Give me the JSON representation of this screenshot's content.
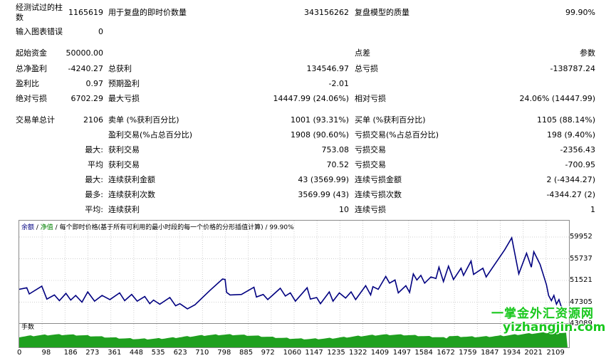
{
  "report": {
    "bars_tested_label": "经测试过的柱\n数",
    "bars_tested_value": "1165619",
    "ticks_label": "用于复盘的即时价数量",
    "ticks_value": "343156262",
    "quality_label": "复盘模型的质量",
    "quality_value": "99.90%",
    "errors_label": "输入图表错误",
    "errors_value": "0",
    "deposit_label": "起始资金",
    "deposit_value": "50000.00",
    "spread_label": "点差",
    "spread_value": "参数",
    "net_label": "总净盈利",
    "net_value": "-4240.27",
    "gross_profit_label": "总获利",
    "gross_profit_value": "134546.97",
    "gross_loss_label": "总亏损",
    "gross_loss_value": "-138787.24",
    "pf_label": "盈利比",
    "pf_value": "0.97",
    "payoff_label": "预期盈利",
    "payoff_value": "-2.01",
    "abs_dd_label": "绝对亏损",
    "abs_dd_value": "6702.29",
    "max_dd_label": "最大亏损",
    "max_dd_value": "14447.99 (24.06%)",
    "rel_dd_label": "相对亏损",
    "rel_dd_value": "24.06% (14447.99)",
    "trades_label": "交易单总计",
    "trades_value": "2106",
    "short_label": "卖单 (%获利百分比)",
    "short_value": "1001 (93.31%)",
    "long_label": "买单 (%获利百分比)",
    "long_value": "1105 (88.14%)",
    "win_label": "盈利交易(%占总百分比)",
    "win_value": "1908 (90.60%)",
    "loss_label": "亏损交易(%占总百分比)",
    "loss_value": "198 (9.40%)",
    "largest_prefix": "最大:",
    "largest_win_label": "获利交易",
    "largest_win_value": "753.08",
    "largest_loss_label": "亏损交易",
    "largest_loss_value": "-2356.43",
    "avg_prefix": "平均",
    "avg_win_label": "获利交易",
    "avg_win_value": "70.52",
    "avg_loss_label": "亏损交易",
    "avg_loss_value": "-700.95",
    "max_cons_prefix": "最大:",
    "max_cons_win_label": "连续获利金额",
    "max_cons_win_value": "43 (3569.99)",
    "max_cons_loss_label": "连续亏损金额",
    "max_cons_loss_value": "2 (-4344.27)",
    "most_prefix": "最多:",
    "most_cons_win_label": "连续获利次数",
    "most_cons_win_value": "3569.99 (43)",
    "most_cons_loss_label": "连续亏损次数",
    "most_cons_loss_value": "-4344.27 (2)",
    "avg_cons_prefix": "平均:",
    "avg_cons_win_label": "连续获利",
    "avg_cons_win_value": "10",
    "avg_cons_loss_label": "连续亏损",
    "avg_cons_loss_value": "1"
  },
  "chart_legend": {
    "balance": "余额",
    "sep1": " / ",
    "equity": "净值",
    "sep2": " / ",
    "model": "每个即时价格(基于所有可利用的最小时段的每一个价格的分形插值计算)",
    "sep3": " / ",
    "quality": "99.90%"
  },
  "volume_label": "手数",
  "watermark": {
    "line1": "一掌金外汇资源网",
    "line2": "yizhangjin.com"
  },
  "colors": {
    "balance": "#000080",
    "equity": "#008000",
    "volume": "#1fa01f"
  },
  "chart_data": {
    "type": "line",
    "series": [
      {
        "name": "余额",
        "values": [
          [
            0,
            49800
          ],
          [
            30,
            50100
          ],
          [
            40,
            48900
          ],
          [
            90,
            50400
          ],
          [
            110,
            47900
          ],
          [
            140,
            48700
          ],
          [
            160,
            47600
          ],
          [
            186,
            49000
          ],
          [
            205,
            47700
          ],
          [
            225,
            48600
          ],
          [
            250,
            47300
          ],
          [
            273,
            49300
          ],
          [
            300,
            47500
          ],
          [
            330,
            48600
          ],
          [
            361,
            47800
          ],
          [
            400,
            49100
          ],
          [
            420,
            47600
          ],
          [
            448,
            48800
          ],
          [
            470,
            47500
          ],
          [
            500,
            48400
          ],
          [
            520,
            47000
          ],
          [
            535,
            47700
          ],
          [
            560,
            46900
          ],
          [
            600,
            48200
          ],
          [
            623,
            46600
          ],
          [
            640,
            47000
          ],
          [
            670,
            46000
          ],
          [
            700,
            46800
          ],
          [
            760,
            49600
          ],
          [
            810,
            51800
          ],
          [
            820,
            51700
          ],
          [
            826,
            49200
          ],
          [
            840,
            48700
          ],
          [
            885,
            48800
          ],
          [
            935,
            50200
          ],
          [
            945,
            48300
          ],
          [
            972,
            48800
          ],
          [
            990,
            47800
          ],
          [
            1040,
            50000
          ],
          [
            1060,
            48500
          ],
          [
            1080,
            49100
          ],
          [
            1100,
            47500
          ],
          [
            1147,
            50100
          ],
          [
            1160,
            47900
          ],
          [
            1185,
            48200
          ],
          [
            1200,
            47000
          ],
          [
            1235,
            49300
          ],
          [
            1250,
            47500
          ],
          [
            1275,
            49100
          ],
          [
            1300,
            48100
          ],
          [
            1322,
            49300
          ],
          [
            1340,
            47800
          ],
          [
            1380,
            50500
          ],
          [
            1400,
            48700
          ],
          [
            1409,
            50300
          ],
          [
            1430,
            49800
          ],
          [
            1460,
            52300
          ],
          [
            1475,
            51000
          ],
          [
            1497,
            51600
          ],
          [
            1510,
            49100
          ],
          [
            1540,
            50500
          ],
          [
            1555,
            49200
          ],
          [
            1570,
            52800
          ],
          [
            1584,
            51600
          ],
          [
            1600,
            52500
          ],
          [
            1615,
            51000
          ],
          [
            1640,
            52200
          ],
          [
            1660,
            51900
          ],
          [
            1672,
            54100
          ],
          [
            1690,
            51300
          ],
          [
            1710,
            54300
          ],
          [
            1730,
            51700
          ],
          [
            1760,
            53900
          ],
          [
            1770,
            52500
          ],
          [
            1800,
            55300
          ],
          [
            1810,
            52700
          ],
          [
            1847,
            53900
          ],
          [
            1860,
            52200
          ],
          [
            1934,
            57500
          ],
          [
            1962,
            59800
          ],
          [
            1990,
            52800
          ],
          [
            2021,
            56800
          ],
          [
            2040,
            54100
          ],
          [
            2050,
            57100
          ],
          [
            2060,
            56100
          ],
          [
            2075,
            54600
          ],
          [
            2100,
            50700
          ],
          [
            2109,
            48600
          ],
          [
            2120,
            47600
          ],
          [
            2130,
            48600
          ],
          [
            2140,
            46900
          ],
          [
            2150,
            47800
          ],
          [
            2160,
            46300
          ],
          [
            2173,
            45900
          ]
        ]
      }
    ],
    "y_ticks": [
      "59952",
      "55737",
      "51521",
      "47305",
      "43089"
    ],
    "x_ticks": [
      "0",
      "98",
      "186",
      "273",
      "361",
      "448",
      "535",
      "623",
      "710",
      "798",
      "885",
      "972",
      "1060",
      "1147",
      "1235",
      "1322",
      "1409",
      "1497",
      "1584",
      "1672",
      "1759",
      "1847",
      "1934",
      "2021",
      "2109"
    ],
    "ylim": [
      43089,
      61200
    ],
    "xlim": [
      0,
      2190
    ]
  }
}
